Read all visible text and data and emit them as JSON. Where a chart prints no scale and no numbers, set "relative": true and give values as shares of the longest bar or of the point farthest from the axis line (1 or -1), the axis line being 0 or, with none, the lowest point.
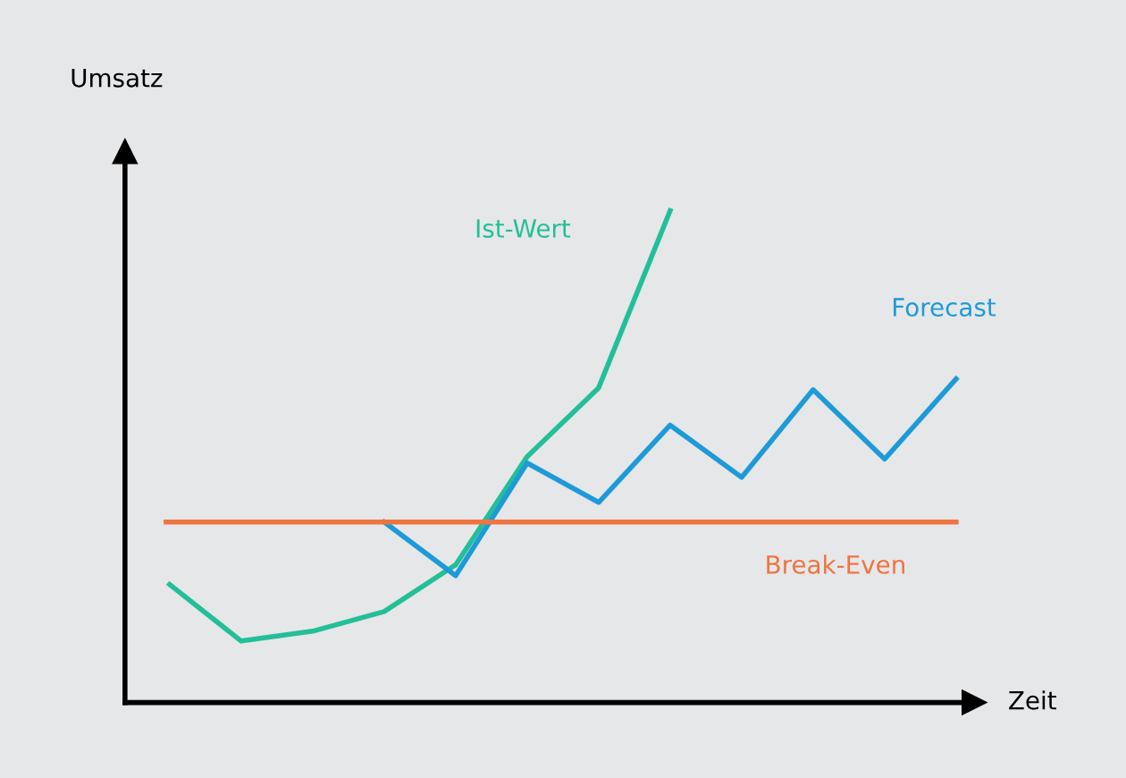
{
  "chart_data": {
    "type": "line",
    "relative": true,
    "xlabel": "Zeit",
    "ylabel": "Umsatz",
    "legend": false,
    "marker": "none",
    "line_style": "solid",
    "categories": [
      null,
      null,
      null,
      null,
      null,
      null,
      null,
      null,
      null,
      null,
      null,
      null
    ],
    "series": [
      {
        "name": "Ist-Wert",
        "color": "#22bf98",
        "values": [
          0.24,
          0.125,
          0.145,
          0.185,
          0.28,
          0.5,
          0.64,
          1.0,
          null,
          null,
          null,
          null
        ]
      },
      {
        "name": "Forecast",
        "color": "#1d9ad8",
        "values": [
          null,
          null,
          null,
          0.367,
          0.258,
          0.487,
          0.407,
          0.564,
          0.458,
          0.636,
          0.495,
          0.658
        ]
      }
    ],
    "ref_lines": [
      {
        "axis": "y",
        "value": 0.367,
        "label": "Break-Even",
        "color": "#ef7441",
        "line_style": "solid"
      }
    ]
  }
}
